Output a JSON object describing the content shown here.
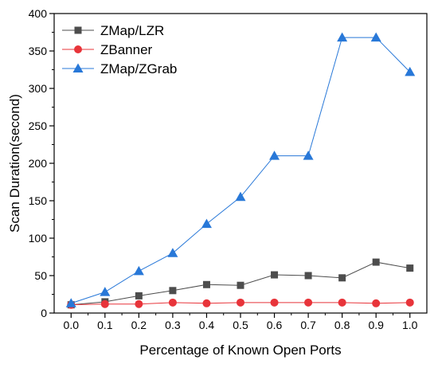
{
  "chart_data": {
    "type": "line",
    "xlabel": "Percentage of Known Open Ports",
    "ylabel": "Scan Duration(second)",
    "x": [
      0.0,
      0.1,
      0.2,
      0.3,
      0.4,
      0.5,
      0.6,
      0.7,
      0.8,
      0.9,
      1.0
    ],
    "x_tick_labels": [
      "0.0",
      "0.1",
      "0.2",
      "0.3",
      "0.4",
      "0.5",
      "0.6",
      "0.7",
      "0.8",
      "0.9",
      "1.0"
    ],
    "xlim": [
      -0.05,
      1.05
    ],
    "ylim": [
      0,
      400
    ],
    "y_ticks": [
      0,
      50,
      100,
      150,
      200,
      250,
      300,
      350,
      400
    ],
    "y_tick_labels": [
      "0",
      "50",
      "100",
      "150",
      "200",
      "250",
      "300",
      "350",
      "400"
    ],
    "grid": false,
    "legend_position": "top-left",
    "series": [
      {
        "name": "ZMap/LZR",
        "marker": "square",
        "color": "#4d4d4d",
        "values": [
          11,
          15,
          23,
          30,
          38,
          37,
          51,
          50,
          47,
          68,
          60
        ]
      },
      {
        "name": "ZBanner",
        "marker": "circle",
        "color": "#e8343a",
        "values": [
          11,
          12,
          12,
          14,
          13,
          14,
          14,
          14,
          14,
          13,
          14
        ]
      },
      {
        "name": "ZMap/ZGrab",
        "marker": "triangle",
        "color": "#2878d8",
        "values": [
          13,
          28,
          56,
          80,
          119,
          155,
          210,
          210,
          368,
          368,
          322
        ]
      }
    ]
  }
}
